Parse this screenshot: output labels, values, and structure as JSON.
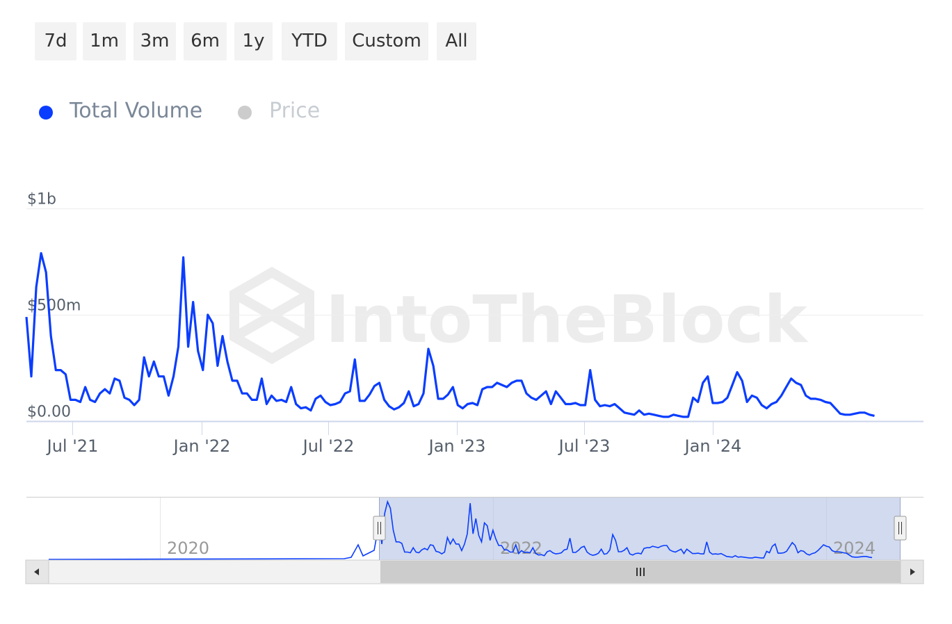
{
  "range_buttons": [
    "7d",
    "1m",
    "3m",
    "6m",
    "1y",
    "YTD",
    "Custom",
    "All"
  ],
  "watermark": "IntoTheBlock",
  "navigator": {
    "labels": [
      "2020",
      "2022",
      "2024"
    ],
    "scroll_left_icon": "arrow-left-icon",
    "scroll_right_icon": "arrow-right-icon",
    "grip_icon": "grip-icon",
    "selection_color": "#b3c1e3"
  },
  "chart_data": {
    "type": "line",
    "title": "",
    "xlabel": "",
    "ylabel": "",
    "legend_position": "top-left",
    "grid": true,
    "y_ticks": [
      "$0.00",
      "$500m",
      "$1b"
    ],
    "y_tick_values": [
      0,
      500,
      1000
    ],
    "y_unit": "$m",
    "ylim": [
      0,
      1000
    ],
    "x_ticks": [
      "Jul '21",
      "Jan '22",
      "Jul '22",
      "Jan '23",
      "Jul '23",
      "Jan '24"
    ],
    "xlim": [
      "2021-04-26",
      "2024-10-28"
    ],
    "series": [
      {
        "name": "Total Volume",
        "color": "#0a3dff",
        "visible": true,
        "interval": "weekly",
        "start": "2021-04-26",
        "values": [
          490,
          210,
          630,
          790,
          700,
          400,
          240,
          240,
          220,
          100,
          100,
          90,
          160,
          100,
          90,
          130,
          150,
          130,
          200,
          190,
          110,
          100,
          75,
          100,
          300,
          210,
          280,
          210,
          210,
          120,
          210,
          350,
          770,
          350,
          560,
          330,
          240,
          500,
          460,
          260,
          400,
          280,
          190,
          190,
          130,
          130,
          100,
          100,
          200,
          80,
          120,
          95,
          100,
          90,
          160,
          80,
          60,
          65,
          50,
          105,
          120,
          90,
          75,
          80,
          90,
          130,
          140,
          290,
          95,
          95,
          125,
          165,
          180,
          100,
          70,
          55,
          65,
          85,
          140,
          70,
          80,
          130,
          340,
          260,
          105,
          105,
          125,
          160,
          75,
          60,
          80,
          85,
          75,
          150,
          160,
          160,
          180,
          170,
          160,
          180,
          190,
          190,
          130,
          110,
          100,
          120,
          140,
          80,
          140,
          110,
          80,
          80,
          85,
          75,
          75,
          240,
          100,
          70,
          75,
          70,
          80,
          60,
          40,
          35,
          30,
          50,
          30,
          35,
          30,
          25,
          20,
          20,
          30,
          25,
          20,
          20,
          110,
          90,
          180,
          210,
          85,
          85,
          90,
          110,
          170,
          230,
          190,
          90,
          120,
          110,
          75,
          60,
          80,
          90,
          120,
          160,
          200,
          180,
          170,
          120,
          105,
          105,
          100,
          90,
          85,
          60,
          35,
          30,
          30,
          35,
          40,
          40,
          30,
          25
        ]
      },
      {
        "name": "Price",
        "color": "#cccccc",
        "visible": false,
        "values": []
      }
    ]
  }
}
